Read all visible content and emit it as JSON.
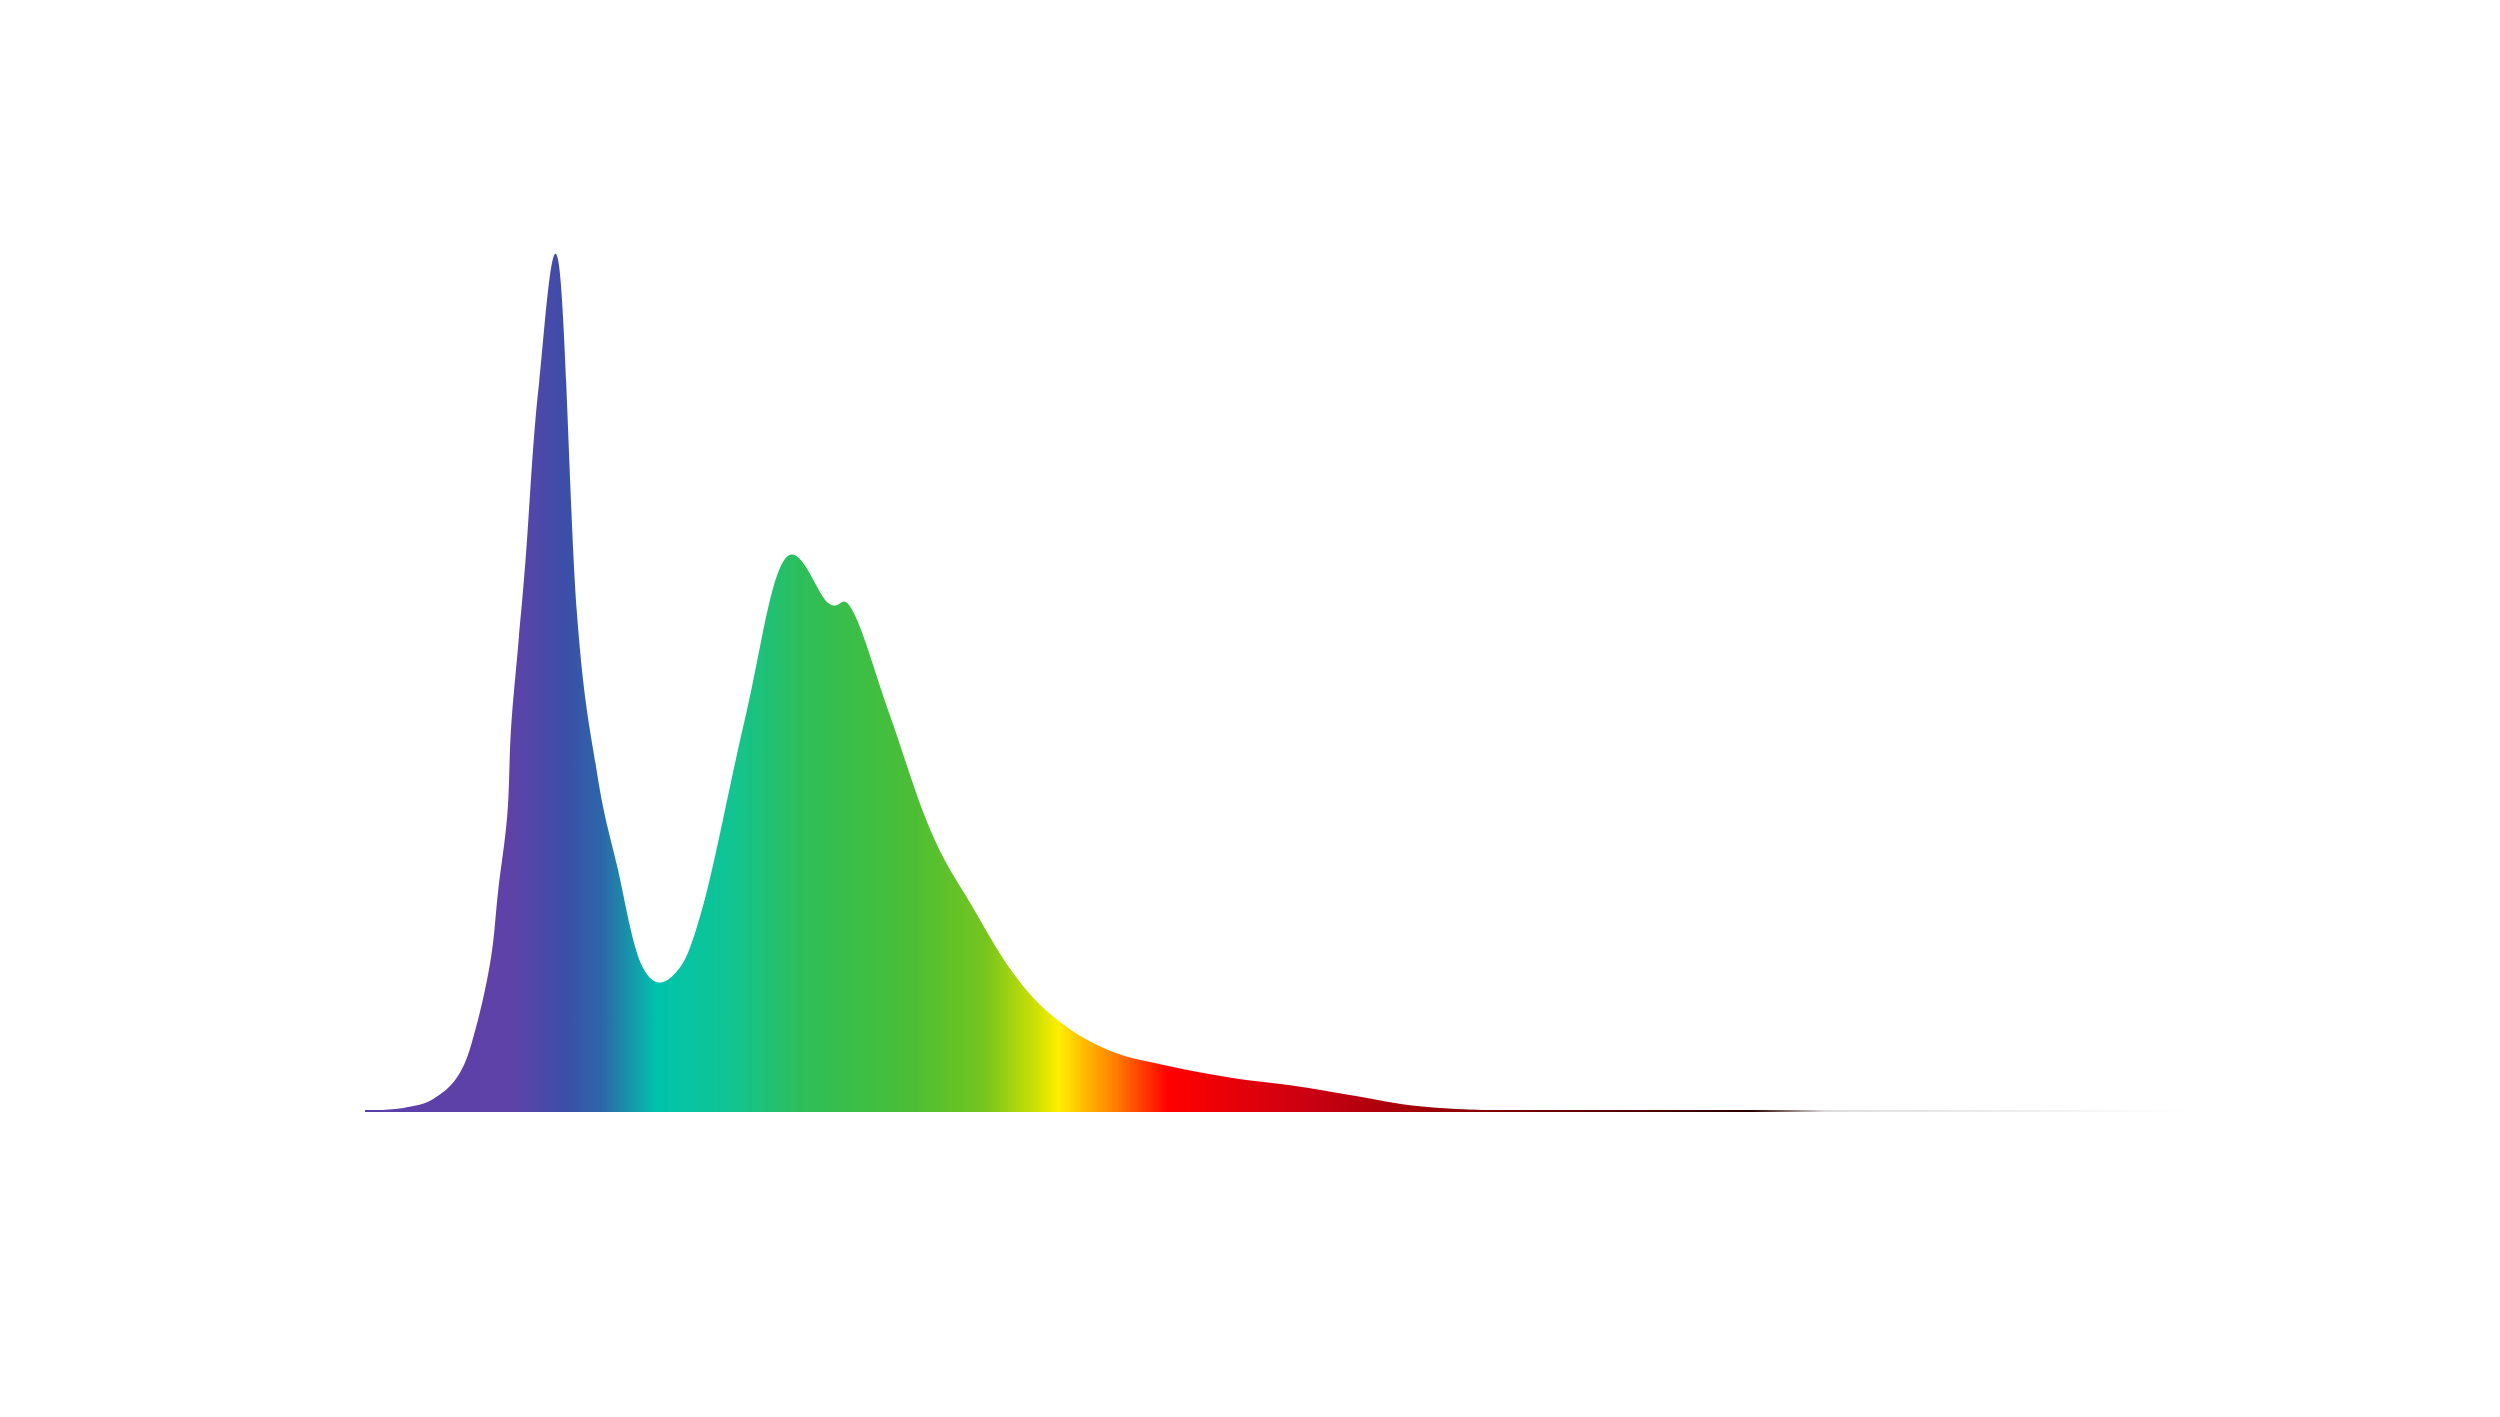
{
  "chart_data": {
    "type": "area",
    "title": "",
    "xlabel": "",
    "ylabel": "",
    "grid": false,
    "legend": "none",
    "xlim": [
      0,
      100
    ],
    "ylim": [
      0,
      100
    ],
    "series": [
      {
        "name": "spectrum",
        "x": [
          0,
          2.2,
          3.8,
          5.2,
          6.1,
          6.9,
          7.3,
          7.8,
          8.0,
          8.4,
          8.8,
          9.5,
          10.6,
          11.6,
          12.7,
          13.8,
          15.2,
          16.9,
          18.5,
          20.8,
          23.0,
          25.4,
          26.7,
          28.7,
          31.0,
          33.3,
          35.6,
          37.9,
          40.7,
          43.8,
          47.5,
          50.8,
          54.2,
          57.6,
          61.5,
          65.9,
          70.3,
          75.7,
          80.0,
          87.0,
          93.0,
          100.0
        ],
        "y": [
          0,
          0.4,
          1.5,
          4.5,
          10,
          18,
          26,
          35,
          45,
          55,
          65,
          85,
          100,
          59,
          40,
          29,
          17,
          16,
          24,
          46,
          65,
          59.8,
          59,
          47,
          33,
          24,
          16,
          10.8,
          7.2,
          5.4,
          3.9,
          3.0,
          1.8,
          0.6,
          0.1,
          0.05,
          0.02,
          0.01,
          0,
          0,
          0,
          0
        ]
      }
    ],
    "gradient_stops": [
      {
        "offset": 0.0,
        "color": "#5b3fa8"
      },
      {
        "offset": 0.08,
        "color": "#5f42a8"
      },
      {
        "offset": 0.11,
        "color": "#3c4ea8"
      },
      {
        "offset": 0.13,
        "color": "#2c67aa"
      },
      {
        "offset": 0.16,
        "color": "#00c3ac"
      },
      {
        "offset": 0.2,
        "color": "#11c493"
      },
      {
        "offset": 0.24,
        "color": "#2ebe59"
      },
      {
        "offset": 0.3,
        "color": "#4bbe35"
      },
      {
        "offset": 0.34,
        "color": "#76c51f"
      },
      {
        "offset": 0.37,
        "color": "#d5e300"
      },
      {
        "offset": 0.38,
        "color": "#ffef00"
      },
      {
        "offset": 0.41,
        "color": "#ff8200"
      },
      {
        "offset": 0.44,
        "color": "#ff0000"
      },
      {
        "offset": 0.52,
        "color": "#c80012"
      },
      {
        "offset": 0.63,
        "color": "#7a0000"
      },
      {
        "offset": 0.76,
        "color": "#2a0000"
      },
      {
        "offset": 0.8,
        "color": "#dddddd"
      },
      {
        "offset": 1.0,
        "color": "#ffffff"
      }
    ]
  }
}
